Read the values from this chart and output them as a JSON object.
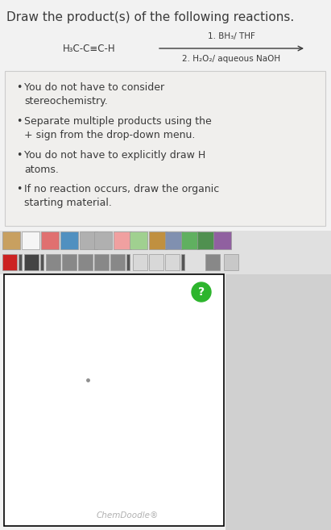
{
  "title": "Draw the product(s) of the following reactions.",
  "title_fontsize": 11,
  "bg_color": "#f2f2f2",
  "white": "#ffffff",
  "reactant_label": "H₃C-C≡C-H",
  "reagent1": "1. BH₃/ THF",
  "reagent2": "2. H₂O₂/ aqueous NaOH",
  "bullet_points": [
    "You do not have to consider\nstereochemistry.",
    "Separate multiple products using the\n+ sign from the drop-down menu.",
    "You do not have to explicitly draw H\natoms.",
    "If no reaction occurs, draw the organic\nstarting material."
  ],
  "chemdoodle_text": "ChemDoodle®",
  "question_mark_color": "#2db52d",
  "question_mark_text": "?",
  "toolbar_bg": "#e0e0e0",
  "canvas_bg": "#ffffff",
  "canvas_border": "#000000",
  "bullet_box_bg": "#f0efed",
  "bullet_box_border": "#cccccc",
  "text_color": "#3a3a3a",
  "light_gray": "#c8c8c8",
  "gray_text": "#b0b0b0",
  "right_panel_color": "#d0d0d0"
}
